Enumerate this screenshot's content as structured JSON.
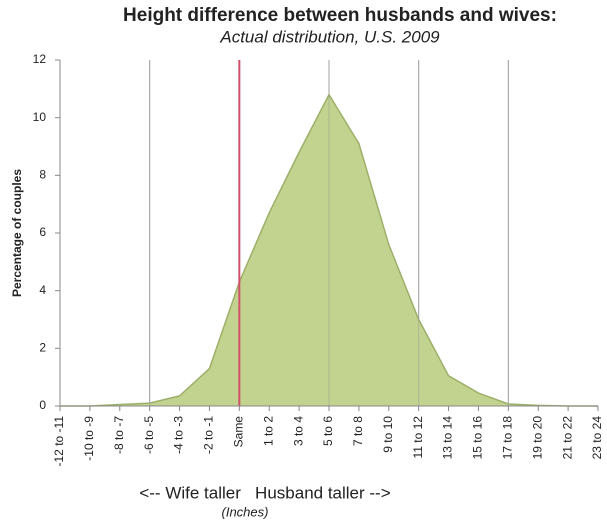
{
  "chart_data": {
    "type": "area",
    "title": "Height difference between husbands and wives:",
    "subtitle": "Actual distribution, U.S. 2009",
    "y_label": "Percentage of couples",
    "annotation": "<-- Wife taller   Husband taller -->",
    "x_label": "(Inches)",
    "categories": [
      "-12 to -11",
      "-10 to -9",
      "-8 to -7",
      "-6 to -5",
      "-4 to -3",
      "-2 to -1",
      "Same",
      "1 to 2",
      "3 to 4",
      "5 to 6",
      "7 to 8",
      "9 to 10",
      "11 to 12",
      "13 to 14",
      "15 to 16",
      "17 to 18",
      "19 to 20",
      "21 to 22",
      "23 to 24"
    ],
    "values": [
      0,
      0,
      0.05,
      0.1,
      0.35,
      1.3,
      4.3,
      6.7,
      8.8,
      10.8,
      9.1,
      5.6,
      3.0,
      1.05,
      0.45,
      0.07,
      0.02,
      0,
      0
    ],
    "color": "#c2d38f",
    "line_color": "#9db06a",
    "ylim": [
      0,
      12
    ],
    "yticks": [
      0,
      2,
      4,
      6,
      8,
      10,
      12
    ],
    "grid": true,
    "reference_category": "Same",
    "reference_color": "#d0506a"
  }
}
